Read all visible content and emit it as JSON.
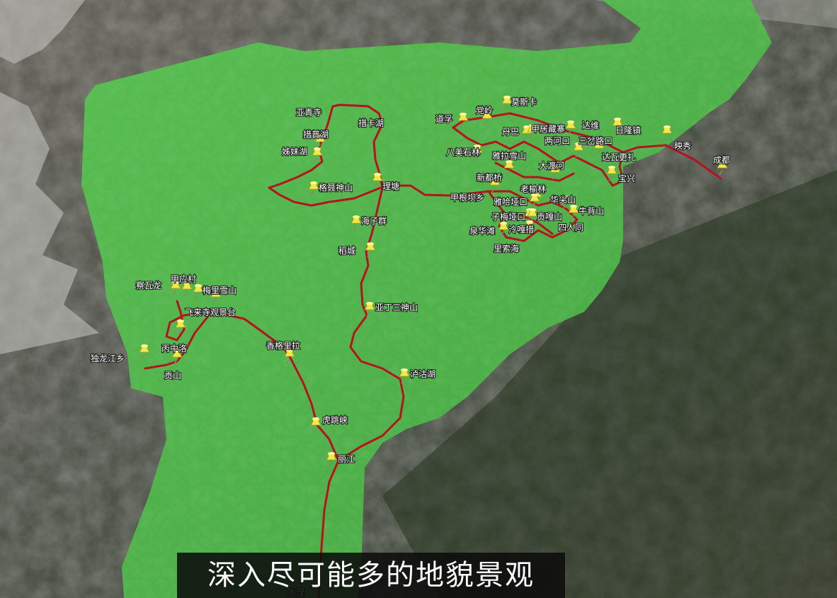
{
  "caption": "深入尽可能多的地貌景观",
  "colors": {
    "region_fill": "#4fc24a",
    "route": "#b3141e",
    "pin": "#f2e84a",
    "terrain_dark": "#2f3a2c",
    "terrain_light": "#7a7a70"
  },
  "icon": "pushpin-icon",
  "places": [
    {
      "id": "yaqingsi",
      "name": "亚青寺"
    },
    {
      "id": "cuokahu",
      "name": "措卡湖"
    },
    {
      "id": "cuopuhu",
      "name": "措普湖"
    },
    {
      "id": "zimeihu",
      "name": "姊妹湖"
    },
    {
      "id": "genie",
      "name": "格聂神山"
    },
    {
      "id": "litang",
      "name": "理塘"
    },
    {
      "id": "haizi",
      "name": "海子群"
    },
    {
      "id": "daocheng",
      "name": "稻城"
    },
    {
      "id": "yading",
      "name": "亚丁三神山"
    },
    {
      "id": "lugu",
      "name": "泸沽湖"
    },
    {
      "id": "xianggelila",
      "name": "香格里拉"
    },
    {
      "id": "hutiaoxia",
      "name": "虎跳峡"
    },
    {
      "id": "lijiang",
      "name": "丽江"
    },
    {
      "id": "dali",
      "name": "大理"
    },
    {
      "id": "chawalong",
      "name": "察瓦龙"
    },
    {
      "id": "jiayingcun",
      "name": "甲应村"
    },
    {
      "id": "meili",
      "name": "梅里雪山"
    },
    {
      "id": "feilaisi",
      "name": "飞来寺观景台"
    },
    {
      "id": "bingzhongluo",
      "name": "丙中洛"
    },
    {
      "id": "dulongjiang",
      "name": "独龙江乡"
    },
    {
      "id": "gongshan",
      "name": "贡山"
    },
    {
      "id": "daofu",
      "name": "道孚"
    },
    {
      "id": "dangling",
      "name": "党岭"
    },
    {
      "id": "mosika",
      "name": "莫斯卡"
    },
    {
      "id": "danba",
      "name": "丹巴"
    },
    {
      "id": "jiaju",
      "name": "甲居藏寨"
    },
    {
      "id": "dawei",
      "name": "达维"
    },
    {
      "id": "rilong",
      "name": "日隆镇"
    },
    {
      "id": "lianghekou",
      "name": "两河口"
    },
    {
      "id": "sanchalukou",
      "name": "三岔路口"
    },
    {
      "id": "dawagengzha",
      "name": "达瓦更扎"
    },
    {
      "id": "yingxiu",
      "name": "映秀"
    },
    {
      "id": "chengdu",
      "name": "成都"
    },
    {
      "id": "bameishilin",
      "name": "八美石林"
    },
    {
      "id": "yala",
      "name": "雅拉雪山"
    },
    {
      "id": "dadu",
      "name": "大渡河"
    },
    {
      "id": "baoxing",
      "name": "宝兴"
    },
    {
      "id": "xindu",
      "name": "新都桥"
    },
    {
      "id": "laoyulin",
      "name": "老榆林"
    },
    {
      "id": "jiagenba",
      "name": "甲根坝乡"
    },
    {
      "id": "yaha",
      "name": "雅哈垭口"
    },
    {
      "id": "huajian",
      "name": "华尖山"
    },
    {
      "id": "niubei",
      "name": "牛背山"
    },
    {
      "id": "zimei",
      "name": "子梅垭口"
    },
    {
      "id": "gongga",
      "name": "贡嘎山"
    },
    {
      "id": "quanhua",
      "name": "泉华滩"
    },
    {
      "id": "lenggacuo",
      "name": "泠嘎措"
    },
    {
      "id": "sirentong",
      "name": "四人同"
    },
    {
      "id": "lisuohai",
      "name": "里索海"
    }
  ]
}
